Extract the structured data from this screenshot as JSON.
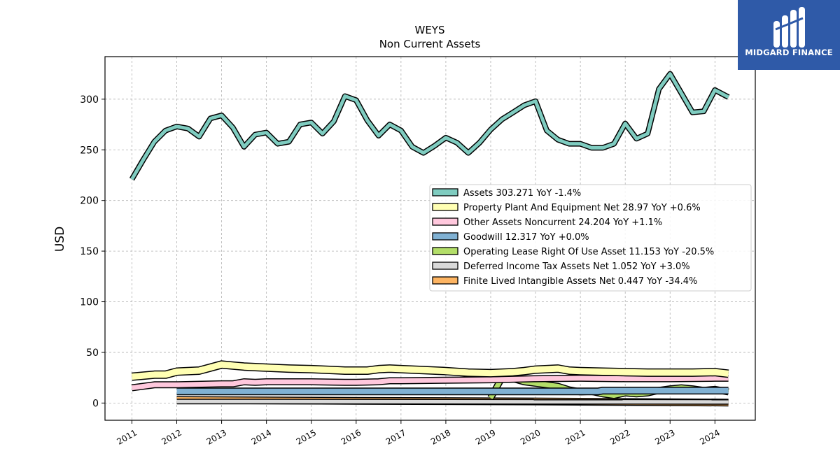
{
  "logo": {
    "text": "MIDGARD FINANCE"
  },
  "chart_data": {
    "type": "line",
    "title": "WEYS",
    "subtitle": "Non Current  Assets",
    "ylabel": "USD",
    "xlabel": "",
    "ylim": [
      -17,
      342
    ],
    "xlim": [
      2010.4,
      2024.9
    ],
    "grid": true,
    "legend_position": "center-right",
    "yticks": [
      0,
      50,
      100,
      150,
      200,
      250,
      300
    ],
    "xticks": [
      "2011",
      "2012",
      "2013",
      "2014",
      "2015",
      "2016",
      "2017",
      "2018",
      "2019",
      "2020",
      "2021",
      "2022",
      "2023",
      "2024"
    ],
    "series": [
      {
        "name": "Assets",
        "legend": "Assets  303.271 YoY -1.4%",
        "color": "#7fccc0",
        "width": 5,
        "x": [
          2011.0,
          2011.25,
          2011.5,
          2011.75,
          2012.0,
          2012.25,
          2012.5,
          2012.75,
          2013.0,
          2013.25,
          2013.5,
          2013.75,
          2014.0,
          2014.25,
          2014.5,
          2014.75,
          2015.0,
          2015.25,
          2015.5,
          2015.75,
          2016.0,
          2016.25,
          2016.5,
          2016.75,
          2017.0,
          2017.25,
          2017.5,
          2017.75,
          2018.0,
          2018.25,
          2018.5,
          2018.75,
          2019.0,
          2019.25,
          2019.5,
          2019.75,
          2020.0,
          2020.25,
          2020.5,
          2020.75,
          2021.0,
          2021.25,
          2021.5,
          2021.75,
          2022.0,
          2022.25,
          2022.5,
          2022.75,
          2023.0,
          2023.25,
          2023.5,
          2023.75,
          2024.0,
          2024.3
        ],
        "y": [
          221,
          240,
          258,
          269,
          273,
          271,
          263,
          281,
          284,
          272,
          253,
          265,
          267,
          256,
          258,
          275,
          277,
          266,
          278,
          303,
          299,
          279,
          264,
          275,
          269,
          253,
          247,
          254,
          262,
          257,
          247,
          257,
          270,
          280,
          287,
          294,
          298,
          269,
          260,
          256,
          256,
          252,
          252,
          256,
          276,
          261,
          266,
          310,
          325,
          306,
          287,
          288,
          309,
          302
        ]
      },
      {
        "name": "Property Plant And Equipment Net",
        "legend": "Property Plant And Equipment Net  28.97 YoY +0.6%",
        "color": "#ffffb3",
        "width": 9,
        "x": [
          2011.0,
          2011.5,
          2011.75,
          2012.0,
          2012.5,
          2012.75,
          2013.0,
          2013.25,
          2013.5,
          2014.0,
          2014.5,
          2015.0,
          2015.5,
          2015.75,
          2016.0,
          2016.25,
          2016.5,
          2016.75,
          2017.0,
          2017.5,
          2018.0,
          2018.5,
          2019.0,
          2019.5,
          2019.75,
          2020.0,
          2020.25,
          2020.5,
          2020.75,
          2021.0,
          2021.5,
          2022.0,
          2022.5,
          2023.0,
          2023.5,
          2024.0,
          2024.3
        ],
        "y": [
          26,
          28,
          28,
          31,
          32,
          35,
          38,
          37,
          36,
          35,
          34,
          33.5,
          32.5,
          32,
          32,
          32,
          33.5,
          34,
          33.5,
          32.5,
          31.5,
          30,
          29.5,
          30.5,
          31.5,
          33,
          33.5,
          34,
          32,
          31.5,
          31,
          30.5,
          30,
          30,
          30,
          30.5,
          29
        ]
      },
      {
        "name": "Other Assets Noncurrent",
        "legend": "Other Assets Noncurrent  24.204 YoY +1.1%",
        "color": "#ffc8dd",
        "width": 7,
        "x": [
          2011.0,
          2011.5,
          2012.0,
          2013.0,
          2013.25,
          2013.5,
          2013.75,
          2014.0,
          2015.0,
          2015.75,
          2016.0,
          2016.5,
          2016.75,
          2017.0,
          2018.0,
          2019.0,
          2020.0,
          2021.0,
          2022.0,
          2023.0,
          2024.0,
          2024.3
        ],
        "y": [
          15,
          18,
          18,
          19,
          19,
          21,
          20.5,
          21,
          21,
          20.5,
          20.5,
          21,
          22,
          22,
          22.5,
          23,
          24,
          24.5,
          24,
          24,
          24.5,
          24.5
        ]
      },
      {
        "name": "Goodwill",
        "legend": "Goodwill  12.317 YoY +0.0%",
        "color": "#80b1d3",
        "width": 8,
        "x": [
          2012.0,
          2021.4,
          2021.5,
          2024.3
        ],
        "y": [
          11.5,
          11.5,
          12.3,
          12.3
        ]
      },
      {
        "name": "Operating Lease Right Of Use Asset",
        "legend": "Operating Lease Right Of Use Asset  11.153 YoY -20.5%",
        "color": "#b3de69",
        "width": 7,
        "x": [
          2019.0,
          2019.25,
          2019.5,
          2019.75,
          2020.0,
          2020.25,
          2020.5,
          2020.75,
          2021.0,
          2021.25,
          2021.5,
          2021.75,
          2022.0,
          2022.25,
          2022.5,
          2022.75,
          2023.0,
          2023.25,
          2023.5,
          2023.75,
          2024.0,
          2024.3
        ],
        "y": [
          5,
          25,
          24,
          21,
          19.5,
          18,
          16.5,
          13,
          11,
          11.5,
          9,
          7.5,
          10,
          9,
          10,
          12.5,
          14,
          15,
          14,
          12.5,
          13.5,
          11
        ]
      },
      {
        "name": "Deferred Income Tax Assets Net",
        "legend": "Deferred Income Tax Assets Net  1.052 YoY +3.0%",
        "color": "#d9d9d9",
        "width": 5,
        "x": [
          2012.0,
          2024.3
        ],
        "y": [
          1.5,
          1.1
        ]
      },
      {
        "name": "Finite Lived Intangible Assets Net",
        "legend": "Finite Lived Intangible Assets Net  0.447 YoY -34.4%",
        "color": "#fdb462",
        "width": 8,
        "x": [
          2012.0,
          2016.0,
          2020.0,
          2024.3
        ],
        "y": [
          3,
          2.2,
          1.6,
          0.5
        ]
      }
    ]
  }
}
